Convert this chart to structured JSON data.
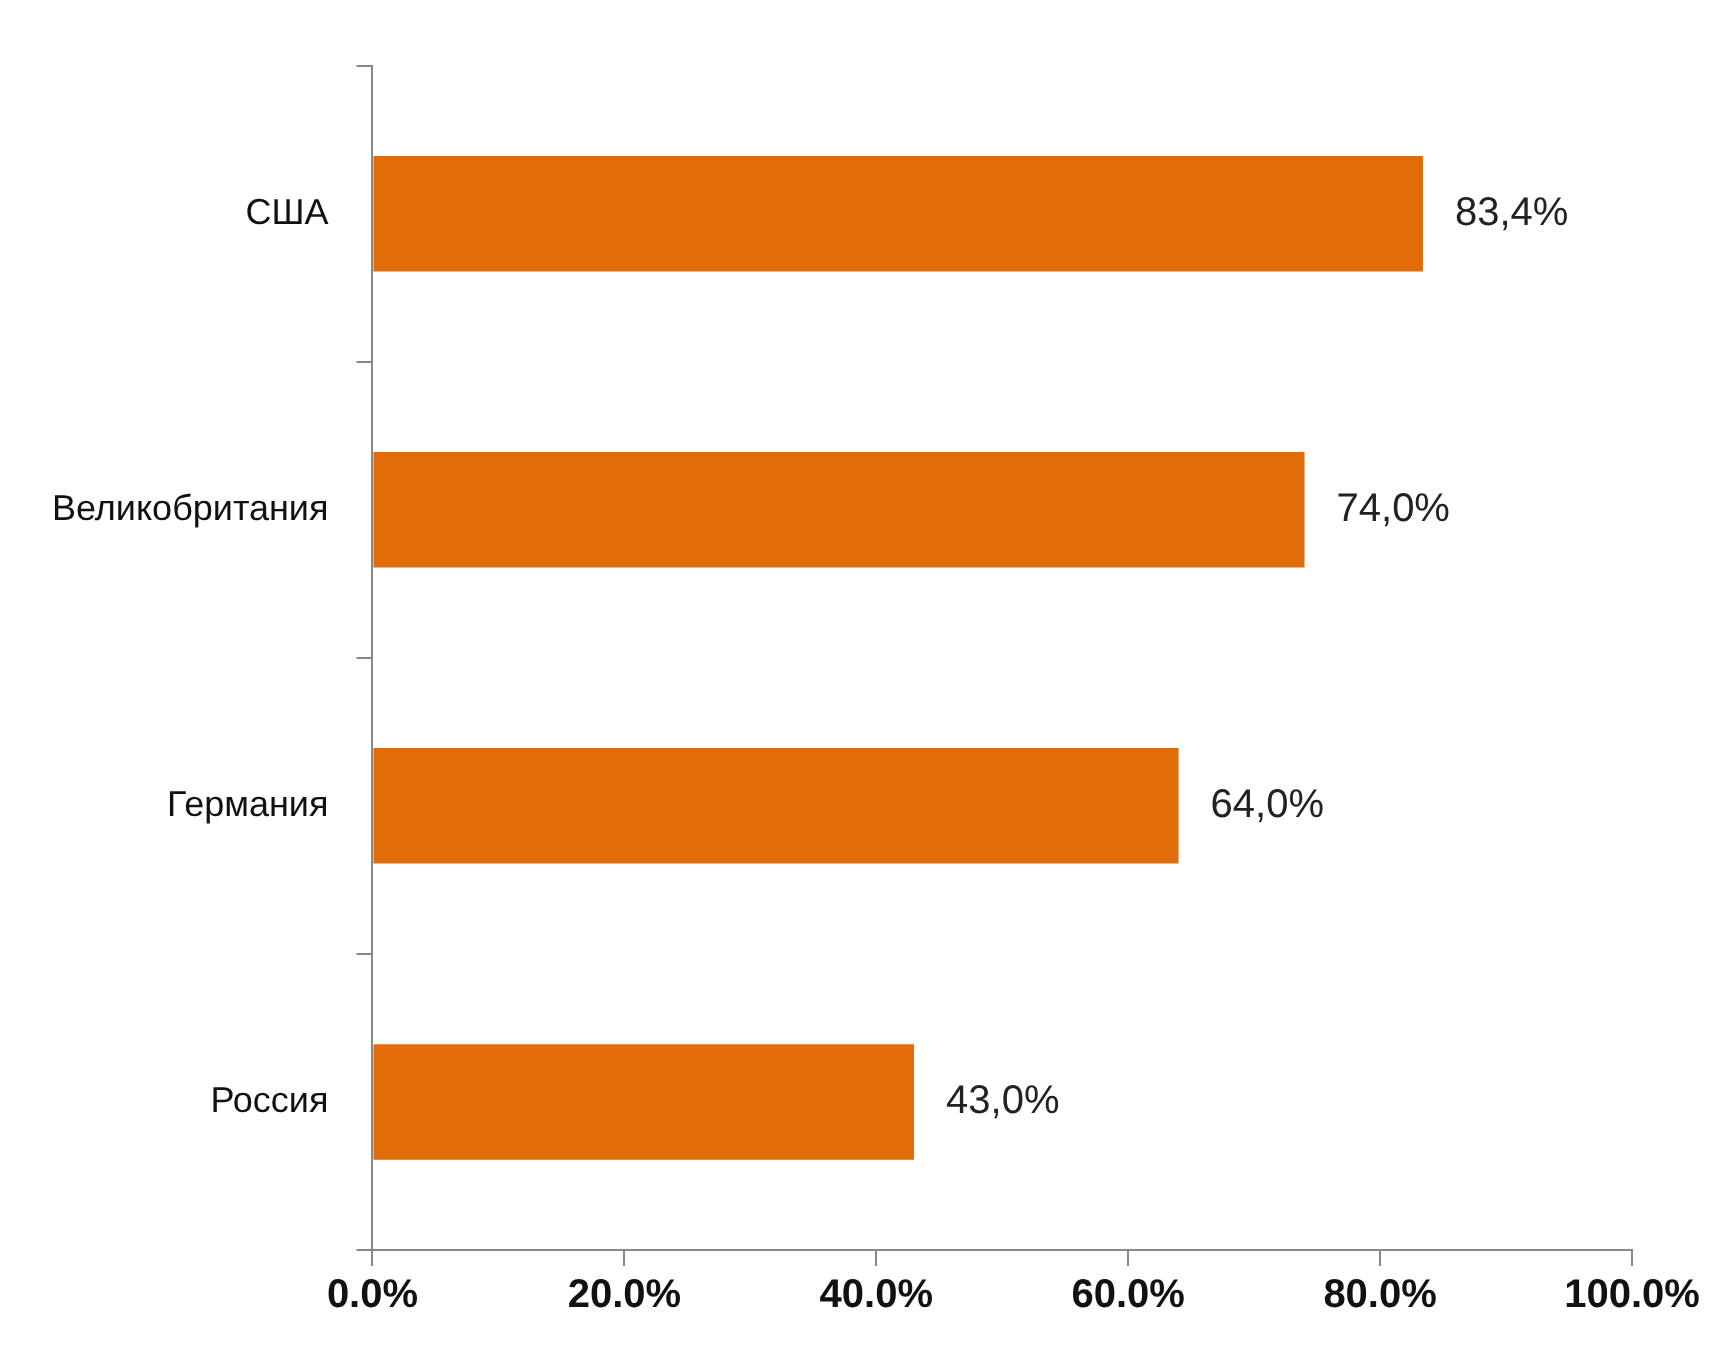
{
  "chart_data": {
    "type": "bar",
    "orientation": "horizontal",
    "categories": [
      "США",
      "Великобритания",
      "Германия",
      "Россия"
    ],
    "values": [
      83.4,
      74.0,
      64.0,
      43.0
    ],
    "color": "#e36c0a",
    "value_labels": [
      "83,4%",
      "74,0%",
      "64,0%",
      "43,0%"
    ],
    "xlim": [
      0,
      100
    ],
    "xticks": [
      {
        "value": 0,
        "label": "0.0%"
      },
      {
        "value": 20,
        "label": "20.0%"
      },
      {
        "value": 40,
        "label": "40.0%"
      },
      {
        "value": 60,
        "label": "60.0%"
      },
      {
        "value": 80,
        "label": "80.0%"
      },
      {
        "value": 100,
        "label": "100.0%"
      }
    ],
    "grid": false,
    "legend": false
  }
}
